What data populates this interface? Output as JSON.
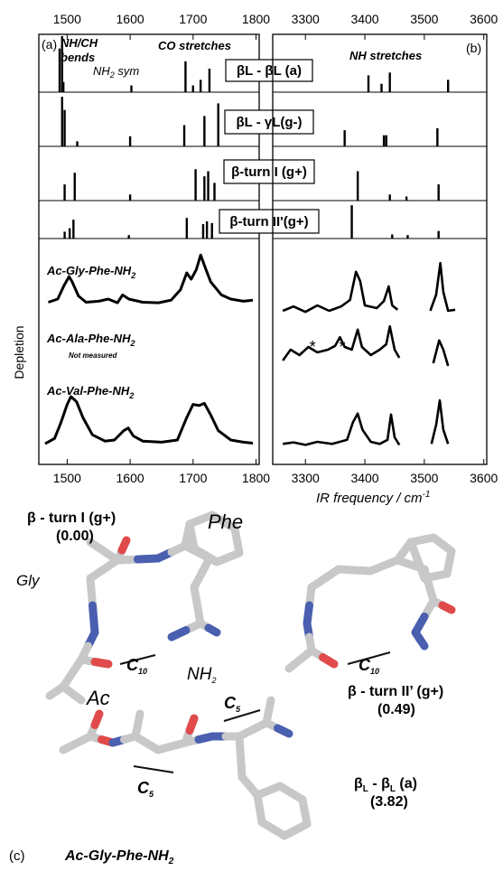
{
  "panel_a_label": "(a)",
  "panel_b_label": "(b)",
  "panel_c_label": "(c)",
  "annot_nhch": "NH/CH",
  "annot_bends": "bends",
  "annot_nh2sym": "NH",
  "annot_nh2sym_sub": "2",
  "annot_nh2sym_tail": " sym",
  "annot_co": "CO stretches",
  "annot_nh": "NH stretches",
  "ylabel": "Depletion",
  "xlabel_b": "IR frequency / cm",
  "xlabel_b_sup": "-1",
  "not_measured": "Not measured",
  "asterisk": "*",
  "colors": {
    "axis": "#000000",
    "atom_C": "#c8c8c8",
    "atom_N": "#4a5fb0",
    "atom_O": "#e04a4a",
    "hbond": "#111111"
  },
  "chart_data": [
    {
      "type": "bar",
      "title": "",
      "xlabel": "",
      "ylabel": "",
      "x_ticks_top": [
        "1500",
        "1600",
        "1700",
        "1800"
      ],
      "x_ticks_bottom": [
        "1500",
        "1600",
        "1700",
        "1800"
      ],
      "xlim": [
        1455,
        1805
      ],
      "legend": "none",
      "rows": [
        {
          "name": "βL - βL (a)",
          "sticks": [
            [
              1488,
              0.78
            ],
            [
              1492,
              1.0
            ],
            [
              1494,
              0.18
            ],
            [
              1602,
              0.12
            ],
            [
              1688,
              0.55
            ],
            [
              1700,
              0.12
            ],
            [
              1712,
              0.22
            ],
            [
              1726,
              0.42
            ]
          ]
        },
        {
          "name": "βL - γL(g-)",
          "sticks": [
            [
              1492,
              0.98
            ],
            [
              1496,
              0.72
            ],
            [
              1516,
              0.1
            ],
            [
              1600,
              0.2
            ],
            [
              1686,
              0.42
            ],
            [
              1718,
              0.6
            ],
            [
              1740,
              0.85
            ]
          ]
        },
        {
          "name": "β-turn I (g+)",
          "sticks": [
            [
              1496,
              0.32
            ],
            [
              1512,
              0.55
            ],
            [
              1600,
              0.12
            ],
            [
              1704,
              0.62
            ],
            [
              1718,
              0.48
            ],
            [
              1724,
              0.58
            ],
            [
              1734,
              0.35
            ]
          ]
        },
        {
          "name": "β-turn II'(g+)",
          "sticks": [
            [
              1496,
              0.2
            ],
            [
              1504,
              0.3
            ],
            [
              1510,
              0.55
            ],
            [
              1598,
              0.1
            ],
            [
              1690,
              0.6
            ],
            [
              1716,
              0.42
            ],
            [
              1722,
              0.5
            ],
            [
              1730,
              0.45
            ]
          ]
        }
      ]
    },
    {
      "type": "bar",
      "title": "",
      "xlabel": "",
      "ylabel": "",
      "x_ticks_top": [
        "3300",
        "3400",
        "3500",
        "3600"
      ],
      "xlim": [
        3245,
        3605
      ],
      "legend": "none",
      "rows": [
        {
          "name": "βL - βL (a)",
          "sticks": [
            [
              3406,
              0.3
            ],
            [
              3428,
              0.15
            ],
            [
              3442,
              0.35
            ],
            [
              3540,
              0.22
            ]
          ]
        },
        {
          "name": "βL - γL(g-)",
          "sticks": [
            [
              3366,
              0.32
            ],
            [
              3432,
              0.22
            ],
            [
              3436,
              0.22
            ],
            [
              3522,
              0.36
            ]
          ]
        },
        {
          "name": "β-turn I (g+)",
          "sticks": [
            [
              3388,
              0.58
            ],
            [
              3442,
              0.12
            ],
            [
              3470,
              0.08
            ],
            [
              3524,
              0.32
            ]
          ]
        },
        {
          "name": "β-turn II'(g+)",
          "sticks": [
            [
              3378,
              0.97
            ],
            [
              3446,
              0.12
            ],
            [
              3472,
              0.1
            ],
            [
              3524,
              0.22
            ]
          ]
        }
      ]
    },
    {
      "type": "line",
      "title": "",
      "xlabel": "",
      "ylabel": "Depletion",
      "x_ticks": [
        "1500",
        "1600",
        "1700",
        "1800"
      ],
      "xlim": [
        1455,
        1805
      ],
      "legend": "none",
      "series": [
        {
          "name": "Ac-Gly-Phe-NH2",
          "points": [
            [
              1470,
              0.06
            ],
            [
              1485,
              0.12
            ],
            [
              1495,
              0.38
            ],
            [
              1503,
              0.55
            ],
            [
              1508,
              0.45
            ],
            [
              1518,
              0.18
            ],
            [
              1530,
              0.06
            ],
            [
              1550,
              0.08
            ],
            [
              1565,
              0.12
            ],
            [
              1580,
              0.05
            ],
            [
              1588,
              0.2
            ],
            [
              1598,
              0.12
            ],
            [
              1620,
              0.06
            ],
            [
              1645,
              0.05
            ],
            [
              1665,
              0.1
            ],
            [
              1680,
              0.3
            ],
            [
              1690,
              0.62
            ],
            [
              1697,
              0.5
            ],
            [
              1705,
              0.68
            ],
            [
              1712,
              0.96
            ],
            [
              1720,
              0.7
            ],
            [
              1728,
              0.45
            ],
            [
              1745,
              0.2
            ],
            [
              1760,
              0.12
            ],
            [
              1780,
              0.08
            ],
            [
              1795,
              0.1
            ]
          ]
        },
        {
          "name": "Ac-Val-Phe-NH2",
          "points": [
            [
              1465,
              0.05
            ],
            [
              1480,
              0.15
            ],
            [
              1490,
              0.45
            ],
            [
              1500,
              0.8
            ],
            [
              1506,
              0.95
            ],
            [
              1515,
              0.85
            ],
            [
              1525,
              0.55
            ],
            [
              1540,
              0.22
            ],
            [
              1560,
              0.1
            ],
            [
              1575,
              0.12
            ],
            [
              1590,
              0.3
            ],
            [
              1597,
              0.35
            ],
            [
              1605,
              0.2
            ],
            [
              1620,
              0.1
            ],
            [
              1650,
              0.08
            ],
            [
              1675,
              0.12
            ],
            [
              1690,
              0.55
            ],
            [
              1700,
              0.8
            ],
            [
              1710,
              0.78
            ],
            [
              1718,
              0.82
            ],
            [
              1728,
              0.6
            ],
            [
              1740,
              0.3
            ],
            [
              1760,
              0.12
            ],
            [
              1780,
              0.08
            ],
            [
              1795,
              0.06
            ]
          ]
        }
      ],
      "annotations": [
        "Ac-Ala-Phe-NH2",
        "Not measured"
      ]
    },
    {
      "type": "line",
      "title": "",
      "xlabel": "IR frequency / cm-1",
      "ylabel": "",
      "x_ticks": [
        "3300",
        "3400",
        "3500",
        "3600"
      ],
      "xlim": [
        3245,
        3605
      ],
      "legend": "none",
      "series": [
        {
          "name": "Ac-Gly-Phe-NH2 (NH)",
          "points": [
            [
              3262,
              0.1
            ],
            [
              3280,
              0.18
            ],
            [
              3300,
              0.08
            ],
            [
              3320,
              0.2
            ],
            [
              3340,
              0.1
            ],
            [
              3360,
              0.18
            ],
            [
              3375,
              0.3
            ],
            [
              3385,
              0.82
            ],
            [
              3392,
              0.65
            ],
            [
              3400,
              0.2
            ],
            [
              3420,
              0.15
            ],
            [
              3432,
              0.28
            ],
            [
              3440,
              0.55
            ],
            [
              3446,
              0.2
            ],
            [
              3455,
              0.12
            ],
            [
              3510,
              0.1
            ],
            [
              3520,
              0.4
            ],
            [
              3527,
              0.98
            ],
            [
              3532,
              0.45
            ],
            [
              3540,
              0.1
            ],
            [
              3552,
              0.12
            ]
          ]
        },
        {
          "name": "Ac-Ala-Phe-NH2 (NH)",
          "points": [
            [
              3262,
              0.35
            ],
            [
              3275,
              0.55
            ],
            [
              3290,
              0.45
            ],
            [
              3305,
              0.6
            ],
            [
              3320,
              0.5
            ],
            [
              3338,
              0.55
            ],
            [
              3350,
              0.62
            ],
            [
              3358,
              0.78
            ],
            [
              3366,
              0.6
            ],
            [
              3378,
              0.55
            ],
            [
              3388,
              0.92
            ],
            [
              3395,
              0.6
            ],
            [
              3410,
              0.45
            ],
            [
              3425,
              0.55
            ],
            [
              3436,
              0.65
            ],
            [
              3442,
              0.98
            ],
            [
              3450,
              0.55
            ],
            [
              3458,
              0.4
            ],
            [
              3515,
              0.3
            ],
            [
              3525,
              0.72
            ],
            [
              3532,
              0.55
            ],
            [
              3540,
              0.25
            ]
          ]
        },
        {
          "name": "Ac-Val-Phe-NH2 (NH)",
          "points": [
            [
              3262,
              0.12
            ],
            [
              3280,
              0.15
            ],
            [
              3300,
              0.1
            ],
            [
              3320,
              0.16
            ],
            [
              3345,
              0.12
            ],
            [
              3370,
              0.2
            ],
            [
              3380,
              0.55
            ],
            [
              3388,
              0.72
            ],
            [
              3396,
              0.4
            ],
            [
              3410,
              0.16
            ],
            [
              3425,
              0.12
            ],
            [
              3438,
              0.2
            ],
            [
              3444,
              0.7
            ],
            [
              3450,
              0.25
            ],
            [
              3458,
              0.1
            ],
            [
              3512,
              0.12
            ],
            [
              3520,
              0.5
            ],
            [
              3526,
              0.98
            ],
            [
              3532,
              0.4
            ],
            [
              3540,
              0.12
            ]
          ]
        }
      ],
      "annotations": [
        "*",
        "*"
      ]
    }
  ],
  "molecules": {
    "m1_title": "β - turn I (g+)",
    "m1_energy": "(0.00)",
    "m1_gly": "Gly",
    "m1_phe": "Phe",
    "m1_ac": "Ac",
    "m1_c10": "C",
    "m1_c10_sub": "10",
    "m1_nh2": "NH",
    "m1_nh2_sub": "2",
    "m2_title": "β - turn II’ (g+)",
    "m2_energy": "(0.49)",
    "m2_c10": "C",
    "m2_c10_sub": "10",
    "m3_title_b": "β",
    "m3_title_sub1": "L",
    "m3_title_dash": " - β",
    "m3_title_sub2": "L",
    "m3_title_tail": " (a)",
    "m3_energy": "(3.82)",
    "m3_c5a": "C",
    "m3_c5a_sub": "5",
    "m3_c5b": "C",
    "m3_c5b_sub": "5",
    "compound": "Ac-Gly-Phe-NH",
    "compound_sub": "2"
  }
}
